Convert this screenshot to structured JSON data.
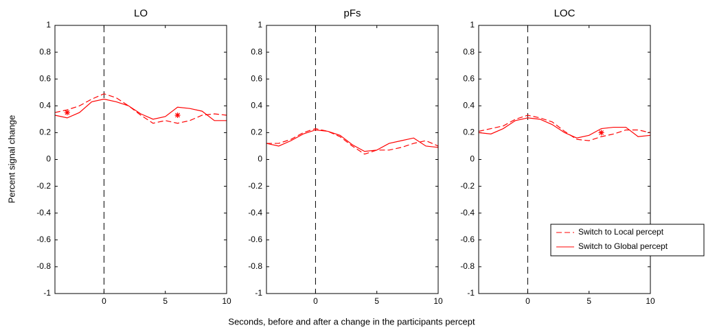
{
  "y_label": "Percent signal change",
  "x_label": "Seconds, before and after a change in the participants percept",
  "chart_data": [
    {
      "type": "line",
      "title": "LO",
      "x": [
        -4,
        -3,
        -2,
        -1,
        0,
        1,
        2,
        3,
        4,
        5,
        6,
        7,
        8,
        9,
        10
      ],
      "series": [
        {
          "color": "#ff0000",
          "line_style": "dashed",
          "values": [
            0.35,
            0.37,
            0.4,
            0.45,
            0.49,
            0.46,
            0.4,
            0.33,
            0.27,
            0.29,
            0.27,
            0.29,
            0.33,
            0.34,
            0.33
          ]
        },
        {
          "color": "#ff0000",
          "line_style": "solid",
          "values": [
            0.33,
            0.31,
            0.35,
            0.43,
            0.45,
            0.43,
            0.4,
            0.34,
            0.3,
            0.32,
            0.39,
            0.38,
            0.36,
            0.29,
            0.29
          ]
        }
      ],
      "markers": [
        {
          "x": -3,
          "y": 0.35
        },
        {
          "x": 6,
          "y": 0.33
        }
      ],
      "vline": 0,
      "xlim": [
        -4,
        10
      ],
      "xticks": [
        0,
        5,
        10
      ],
      "ylim": [
        -1,
        1
      ],
      "yticks": [
        -1,
        -0.8,
        -0.6,
        -0.4,
        -0.2,
        0,
        0.2,
        0.4,
        0.6,
        0.8,
        1
      ]
    },
    {
      "type": "line",
      "title": "pFs",
      "x": [
        -4,
        -3,
        -2,
        -1,
        0,
        1,
        2,
        3,
        4,
        5,
        6,
        7,
        8,
        9,
        10
      ],
      "series": [
        {
          "color": "#ff0000",
          "line_style": "dashed",
          "values": [
            0.12,
            0.12,
            0.15,
            0.2,
            0.23,
            0.21,
            0.17,
            0.1,
            0.04,
            0.07,
            0.07,
            0.09,
            0.12,
            0.14,
            0.1
          ]
        },
        {
          "color": "#ff0000",
          "line_style": "solid",
          "values": [
            0.12,
            0.1,
            0.14,
            0.19,
            0.22,
            0.21,
            0.18,
            0.11,
            0.06,
            0.07,
            0.12,
            0.14,
            0.16,
            0.1,
            0.09
          ]
        }
      ],
      "vline": 0,
      "xlim": [
        -4,
        10
      ],
      "xticks": [
        0,
        5,
        10
      ],
      "ylim": [
        -1,
        1
      ],
      "yticks": [
        -1,
        -0.8,
        -0.6,
        -0.4,
        -0.2,
        0,
        0.2,
        0.4,
        0.6,
        0.8,
        1
      ]
    },
    {
      "type": "line",
      "title": "LOC",
      "x": [
        -4,
        -3,
        -2,
        -1,
        0,
        1,
        2,
        3,
        4,
        5,
        6,
        7,
        8,
        9,
        10
      ],
      "series": [
        {
          "name": "Switch to Local percept",
          "color": "#ff0000",
          "line_style": "dashed",
          "values": [
            0.21,
            0.23,
            0.25,
            0.3,
            0.33,
            0.31,
            0.28,
            0.21,
            0.15,
            0.14,
            0.17,
            0.19,
            0.22,
            0.22,
            0.2
          ]
        },
        {
          "name": "Switch to Global percept",
          "color": "#ff0000",
          "line_style": "solid",
          "values": [
            0.2,
            0.19,
            0.23,
            0.29,
            0.31,
            0.3,
            0.26,
            0.2,
            0.16,
            0.18,
            0.23,
            0.24,
            0.24,
            0.17,
            0.18
          ]
        }
      ],
      "markers": [
        {
          "x": 6,
          "y": 0.2
        }
      ],
      "vline": 0,
      "legend": "lower right",
      "xlim": [
        -4,
        10
      ],
      "xticks": [
        0,
        5,
        10
      ],
      "ylim": [
        -1,
        1
      ],
      "yticks": [
        -1,
        -0.8,
        -0.6,
        -0.4,
        -0.2,
        0,
        0.2,
        0.4,
        0.6,
        0.8,
        1
      ]
    }
  ]
}
